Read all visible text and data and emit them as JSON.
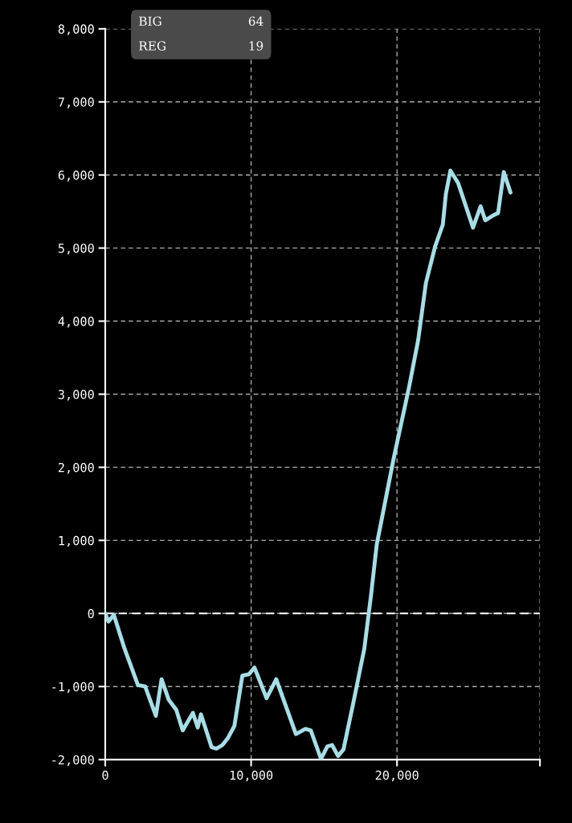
{
  "chart_data": {
    "type": "line",
    "series": [
      {
        "color": "#a8dde6",
        "x": [
          0,
          220,
          590,
          1320,
          2240,
          2740,
          3470,
          3860,
          4350,
          4870,
          5310,
          6010,
          6340,
          6560,
          7290,
          7620,
          8030,
          8390,
          8850,
          9400,
          9860,
          10230,
          11060,
          11720,
          13070,
          13720,
          14090,
          14790,
          15220,
          15550,
          15960,
          16330,
          17020,
          17760,
          18220,
          18610,
          19770,
          20820,
          21450,
          21980,
          22610,
          23140,
          23350,
          23660,
          24190,
          25210,
          25730,
          26050,
          26620,
          26930,
          27320,
          27780
        ],
        "values": [
          0,
          -110,
          -20,
          -480,
          -980,
          -1000,
          -1400,
          -900,
          -1180,
          -1320,
          -1600,
          -1360,
          -1560,
          -1380,
          -1830,
          -1850,
          -1800,
          -1710,
          -1540,
          -850,
          -830,
          -740,
          -1160,
          -900,
          -1650,
          -1580,
          -1600,
          -1990,
          -1820,
          -1800,
          -1950,
          -1860,
          -1210,
          -480,
          250,
          940,
          2120,
          3090,
          3740,
          4520,
          5020,
          5320,
          5740,
          6060,
          5890,
          5280,
          5570,
          5380,
          5450,
          5480,
          6040,
          5760
        ]
      }
    ],
    "xlim": [
      0,
      29800
    ],
    "xticks": [
      0,
      {
        "value": 10000,
        "label": "10,000"
      },
      {
        "value": 20000,
        "label": "20,000"
      },
      {
        "value": 29800,
        "label": null
      }
    ],
    "ylim": [
      -2000,
      8000
    ],
    "yticks": [
      {
        "value": -2000,
        "label": "-2,000"
      },
      {
        "value": -1000,
        "label": "-1,000"
      },
      0,
      {
        "value": 1000,
        "label": "1,000"
      },
      {
        "value": 2000,
        "label": "2,000"
      },
      {
        "value": 3000,
        "label": "3,000"
      },
      {
        "value": 4000,
        "label": "4,000"
      },
      {
        "value": 5000,
        "label": "5,000"
      },
      {
        "value": 6000,
        "label": "6,000"
      },
      {
        "value": 7000,
        "label": "7,000"
      },
      {
        "value": 8000,
        "label": "8,000"
      }
    ],
    "grid": true,
    "line_style": "solid",
    "marker": "none",
    "ref_lines": [
      {
        "axis": "y",
        "value": 0,
        "color": "#ffffff",
        "line_style": "dashed"
      }
    ],
    "annotations": [
      "BIG",
      "64",
      "REG",
      "19"
    ]
  }
}
